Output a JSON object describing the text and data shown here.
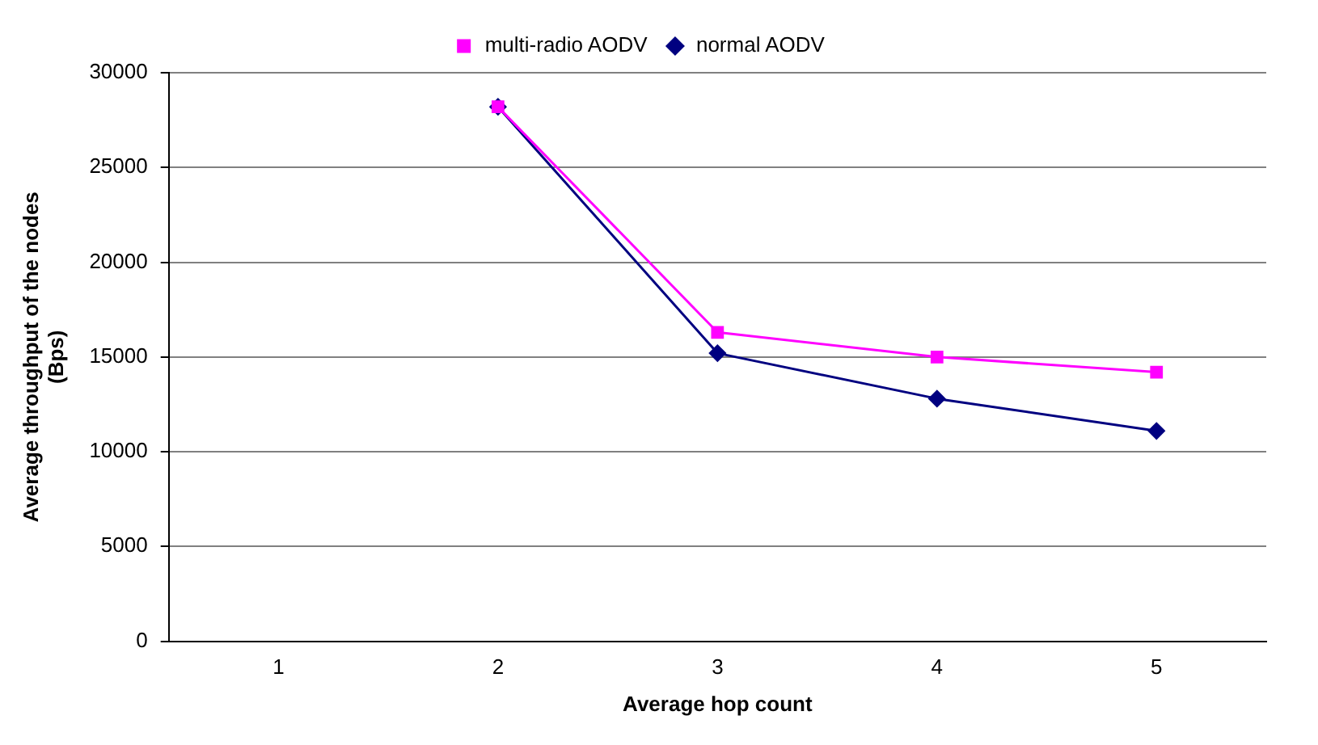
{
  "chart_data": {
    "type": "line",
    "xlabel": "Average hop count",
    "ylabel": "Average throughput of the nodes\n(Bps)",
    "categories": [
      "1",
      "2",
      "3",
      "4",
      "5"
    ],
    "series": [
      {
        "name": "normal AODV",
        "color": "#000080",
        "values": [
          null,
          28200,
          15200,
          12800,
          11100
        ],
        "marker": "diamond"
      },
      {
        "name": "multi-radio AODV",
        "color": "#ff00ff",
        "values": [
          null,
          28200,
          16300,
          15000,
          14200
        ],
        "marker": "square"
      }
    ],
    "ylim": [
      0,
      30000
    ],
    "yticks": [
      0,
      5000,
      10000,
      15000,
      20000,
      25000,
      30000
    ],
    "grid": "y",
    "legend": "top",
    "line_style": "solid"
  }
}
